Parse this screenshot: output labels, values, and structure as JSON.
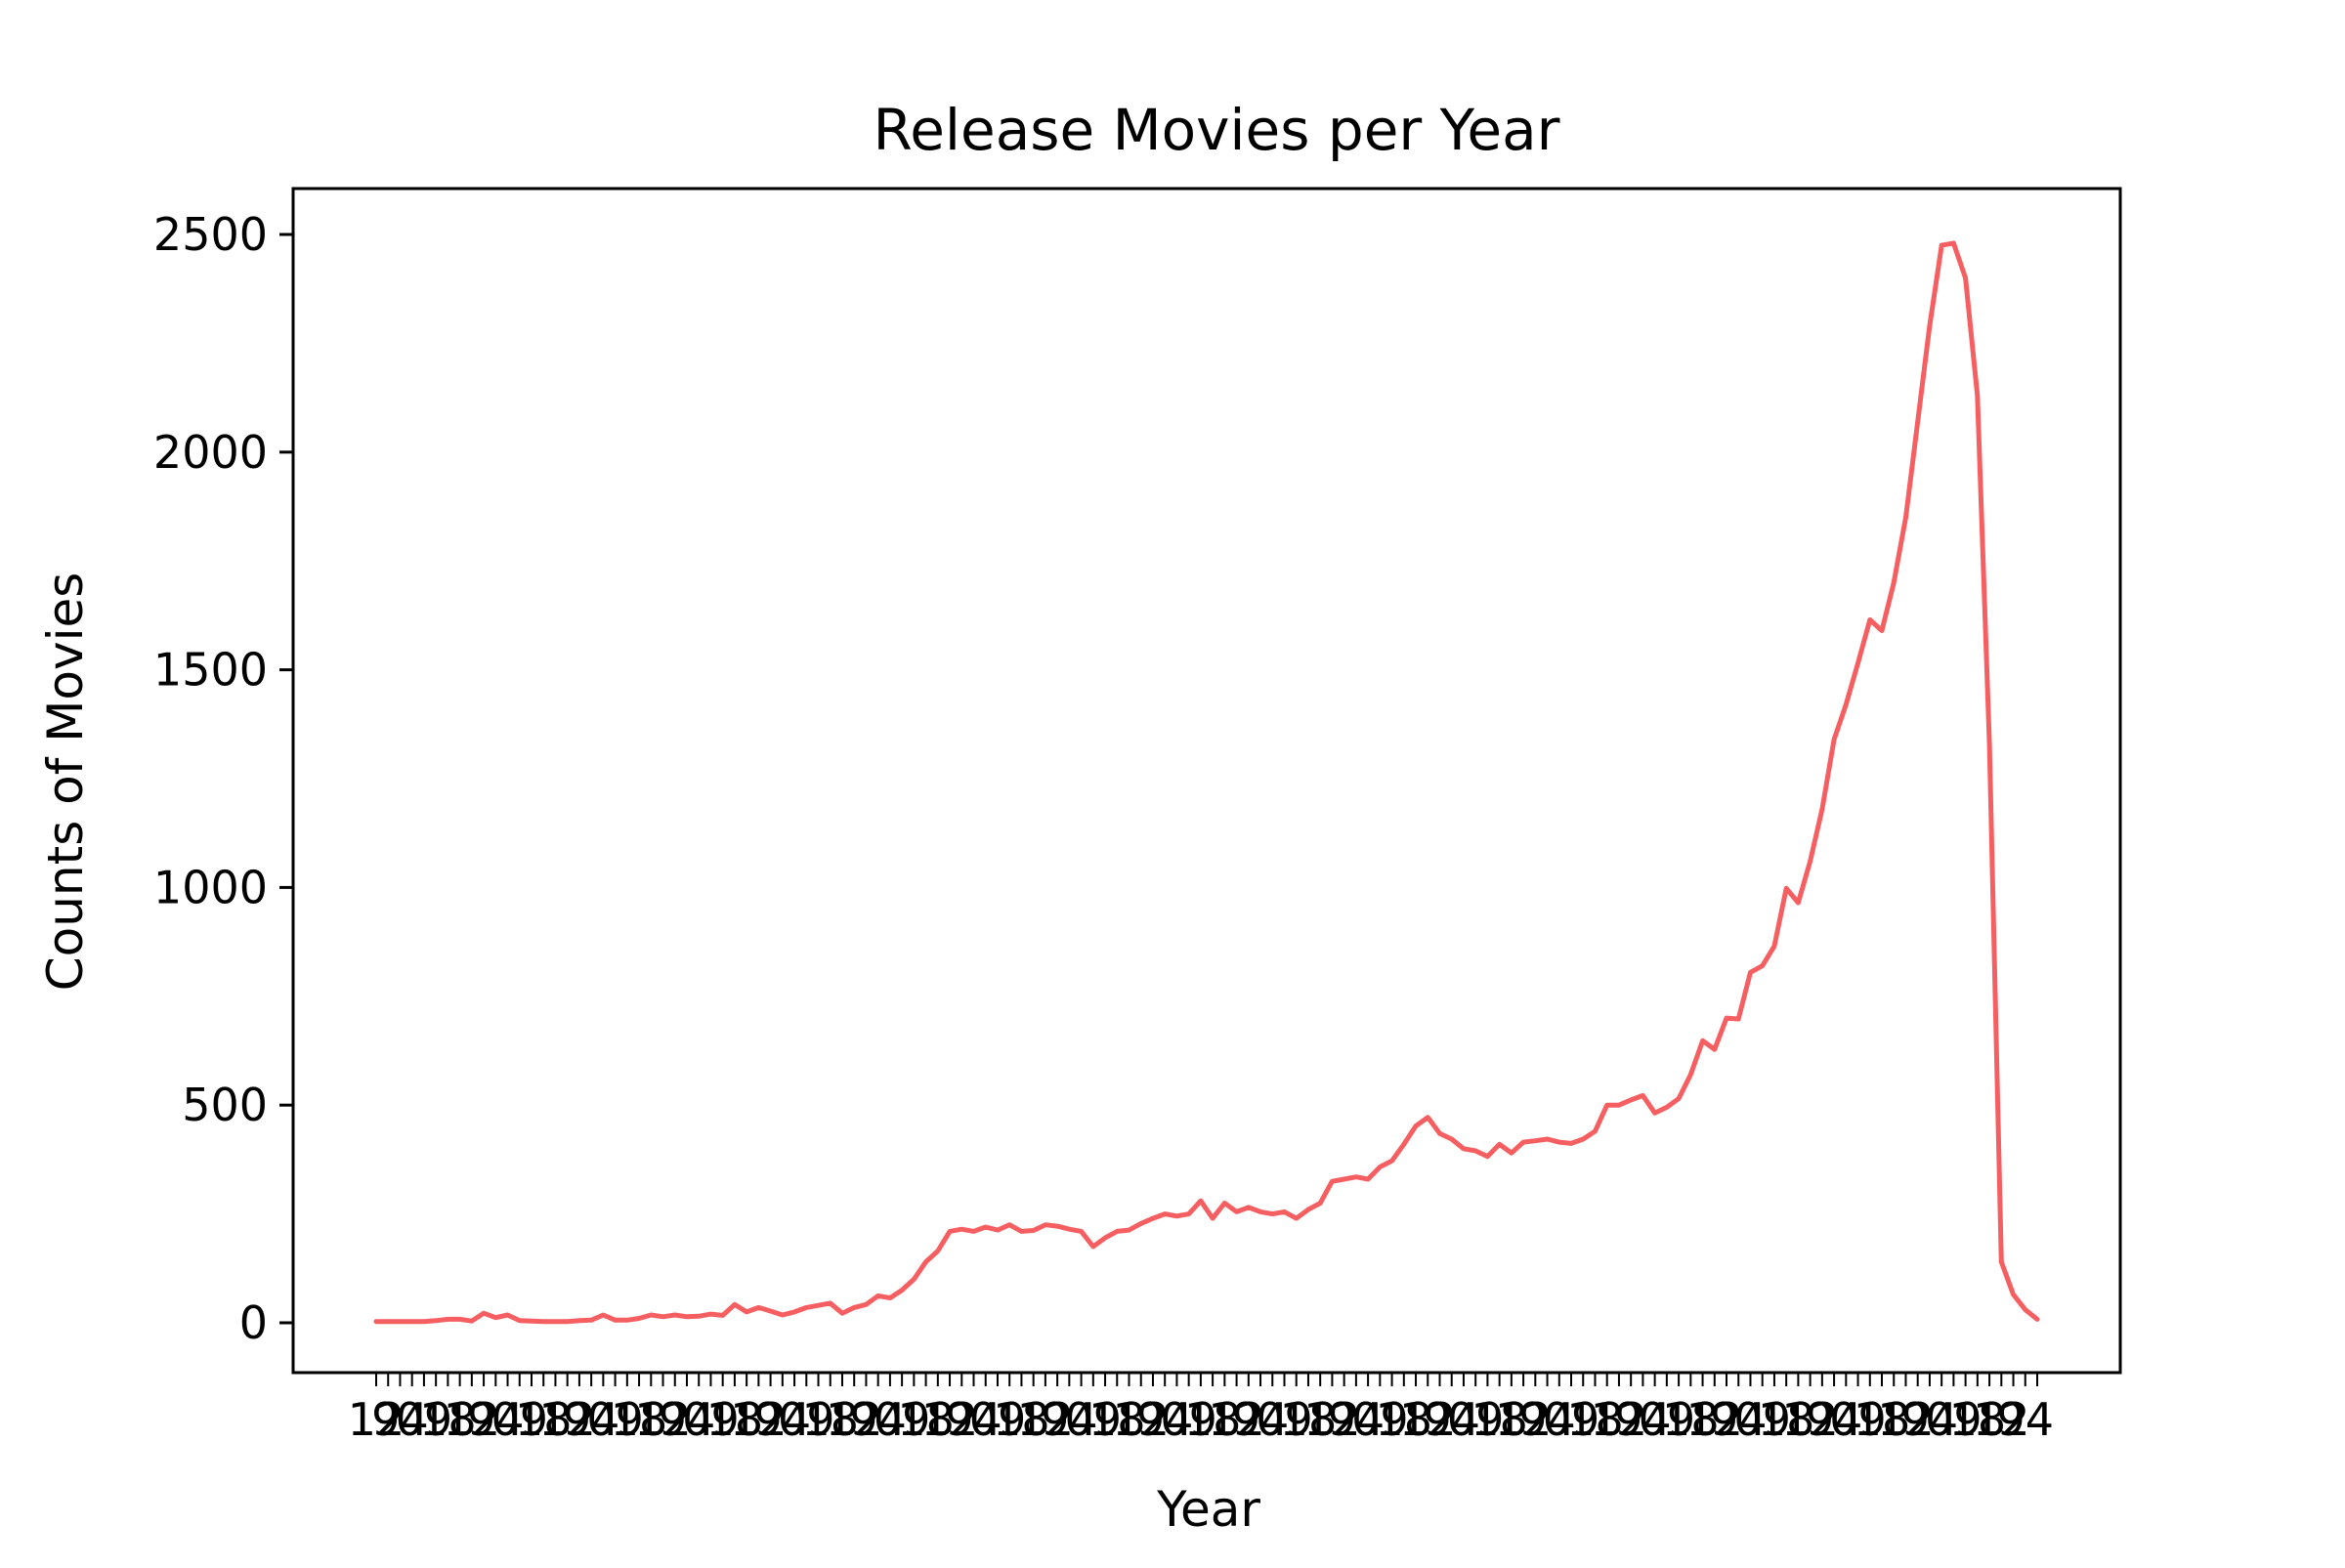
{
  "chart_data": {
    "type": "line",
    "title": "Release Movies per Year",
    "xlabel": "Year",
    "ylabel": "Counts of Movies",
    "ylim": [
      -120,
      2600
    ],
    "yticks": [
      0,
      500,
      1000,
      1500,
      2000,
      2500
    ],
    "grid": false,
    "line_color": "#f65f61",
    "series": [
      {
        "values": [
          3,
          3,
          3,
          3,
          3,
          5,
          8,
          8,
          4,
          22,
          12,
          18,
          5,
          4,
          3,
          3,
          3,
          5,
          6,
          18,
          6,
          6,
          10,
          18,
          14,
          18,
          14,
          15,
          20,
          17,
          42,
          25,
          35,
          27,
          18,
          25,
          35,
          40,
          45,
          22,
          35,
          42,
          62,
          57,
          75,
          100,
          140,
          165,
          210,
          215,
          210,
          220,
          213,
          225,
          210,
          212,
          225,
          222,
          215,
          210,
          175,
          195,
          210,
          213,
          228,
          240,
          250,
          245,
          250,
          280,
          240,
          275,
          255,
          265,
          255,
          250,
          255,
          240,
          260,
          275,
          325,
          330,
          335,
          330,
          358,
          372,
          410,
          452,
          472,
          435,
          422,
          400,
          395,
          382,
          410,
          390,
          415,
          418,
          422,
          415,
          412,
          422,
          440,
          500,
          500,
          512,
          522,
          482,
          495,
          515,
          570,
          648,
          628,
          700,
          698,
          805,
          820,
          865,
          998,
          965,
          1060,
          1180,
          1340,
          1420,
          1515,
          1615,
          1590,
          1700,
          1850,
          2070,
          2290,
          2475,
          2480,
          2400,
          2130,
          1330,
          140,
          65,
          30,
          8
        ]
      }
    ]
  }
}
